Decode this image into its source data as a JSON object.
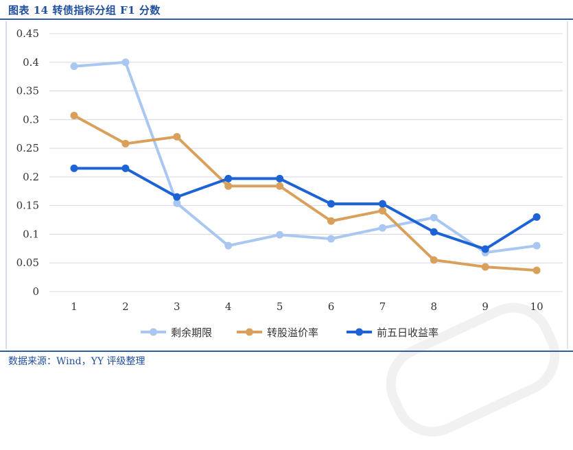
{
  "title": "图表 14 转债指标分组 F1 分数",
  "source": "数据来源：Wind，YY 评级整理",
  "chart_data": {
    "type": "line",
    "x": [
      1,
      2,
      3,
      4,
      5,
      6,
      7,
      8,
      9,
      10
    ],
    "ylim": [
      0,
      0.45
    ],
    "yticks": [
      "0",
      "0.05",
      "0.1",
      "0.15",
      "0.2",
      "0.25",
      "0.3",
      "0.35",
      "0.4",
      "0.45"
    ],
    "xticks": [
      "1",
      "2",
      "3",
      "4",
      "5",
      "6",
      "7",
      "8",
      "9",
      "10"
    ],
    "grid": true,
    "legend_position": "bottom",
    "series": [
      {
        "name": "剩余期限",
        "color": "#a9c7f0",
        "values": [
          0.393,
          0.4,
          0.154,
          0.08,
          0.099,
          0.092,
          0.111,
          0.129,
          0.068,
          0.08
        ]
      },
      {
        "name": "转股溢价率",
        "color": "#d9a05b",
        "values": [
          0.307,
          0.258,
          0.27,
          0.184,
          0.184,
          0.123,
          0.141,
          0.055,
          0.043,
          0.037
        ]
      },
      {
        "name": "前五日收益率",
        "color": "#1e63d6",
        "values": [
          0.215,
          0.215,
          0.165,
          0.197,
          0.197,
          0.153,
          0.153,
          0.104,
          0.074,
          0.13
        ]
      }
    ]
  }
}
